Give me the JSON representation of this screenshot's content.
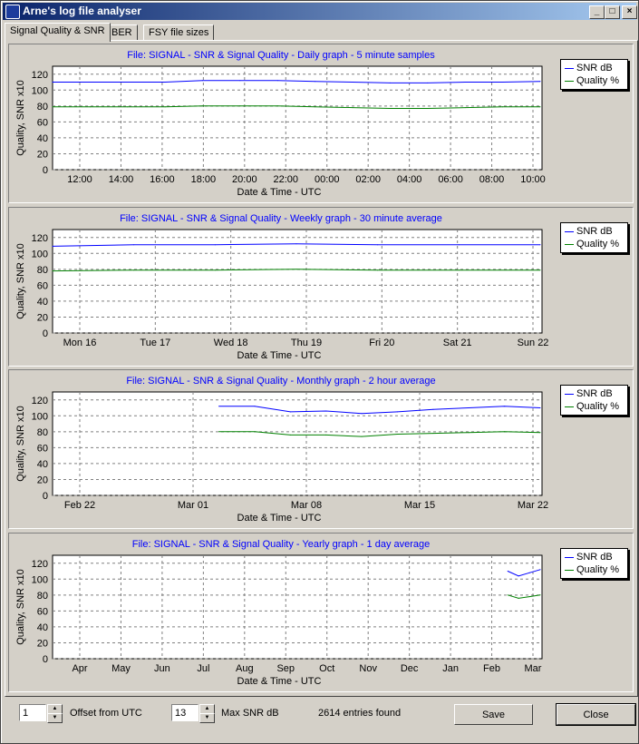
{
  "window": {
    "title": "Arne's log file analyser",
    "minimize": "_",
    "maximize": "□",
    "close": "×"
  },
  "tabs": [
    {
      "label": "Signal Quality & SNR"
    },
    {
      "label": "BER"
    },
    {
      "label": "FSY file sizes"
    }
  ],
  "colors": {
    "snr": "#0000ff",
    "quality": "#008000",
    "title": "#0000ff"
  },
  "charts": [
    {
      "title": "File: SIGNAL - SNR & Signal Quality - Daily graph - 5 minute samples",
      "ylabel": "Quality, SNR x10",
      "xlabel": "Date & Time - UTC",
      "yticks": [
        "0",
        "20",
        "40",
        "60",
        "80",
        "100",
        "120"
      ],
      "xticks": [
        "12:00",
        "14:00",
        "16:00",
        "18:00",
        "20:00",
        "22:00",
        "00:00",
        "02:00",
        "04:00",
        "06:00",
        "08:00",
        "10:00"
      ],
      "legend": [
        "SNR dB",
        "Quality %"
      ]
    },
    {
      "title": "File: SIGNAL - SNR & Signal Quality - Weekly graph - 30 minute average",
      "ylabel": "Quality, SNR x10",
      "xlabel": "Date & Time - UTC",
      "yticks": [
        "0",
        "20",
        "40",
        "60",
        "80",
        "100",
        "120"
      ],
      "xticks": [
        "Mon 16",
        "Tue 17",
        "Wed 18",
        "Thu 19",
        "Fri 20",
        "Sat 21",
        "Sun 22"
      ],
      "legend": [
        "SNR dB",
        "Quality %"
      ]
    },
    {
      "title": "File: SIGNAL - SNR & Signal Quality - Monthly graph - 2 hour average",
      "ylabel": "Quality, SNR x10",
      "xlabel": "Date & Time - UTC",
      "yticks": [
        "0",
        "20",
        "40",
        "60",
        "80",
        "100",
        "120"
      ],
      "xticks": [
        "Feb 22",
        "Mar 01",
        "Mar 08",
        "Mar 15",
        "Mar 22"
      ],
      "legend": [
        "SNR dB",
        "Quality %"
      ]
    },
    {
      "title": "File: SIGNAL - SNR & Signal Quality - Yearly graph - 1 day average",
      "ylabel": "Quality, SNR x10",
      "xlabel": "Date & Time - UTC",
      "yticks": [
        "0",
        "20",
        "40",
        "60",
        "80",
        "100",
        "120"
      ],
      "xticks": [
        "Apr",
        "May",
        "Jun",
        "Jul",
        "Aug",
        "Sep",
        "Oct",
        "Nov",
        "Dec",
        "Jan",
        "Feb",
        "Mar"
      ],
      "legend": [
        "SNR dB",
        "Quality %"
      ]
    }
  ],
  "chart_data": [
    {
      "type": "line",
      "title": "File: SIGNAL - SNR & Signal Quality - Daily graph - 5 minute samples",
      "xlabel": "Date & Time - UTC",
      "ylabel": "Quality, SNR x10",
      "ylim": [
        0,
        130
      ],
      "x": [
        "10:40",
        "12:00",
        "14:00",
        "16:00",
        "18:00",
        "20:00",
        "22:00",
        "00:00",
        "02:00",
        "04:00",
        "06:00",
        "08:00",
        "10:00",
        "10:10"
      ],
      "series": [
        {
          "name": "SNR dB",
          "values": [
            110,
            110,
            110,
            110,
            112,
            112,
            112,
            111,
            110,
            109,
            109,
            110,
            110,
            111
          ]
        },
        {
          "name": "Quality %",
          "values": [
            79,
            79,
            79,
            79,
            80,
            80,
            80,
            79,
            78,
            77,
            77,
            78,
            79,
            79
          ]
        }
      ],
      "grid": true,
      "legend": "right"
    },
    {
      "type": "line",
      "title": "File: SIGNAL - SNR & Signal Quality - Weekly graph - 30 minute average",
      "xlabel": "Date & Time - UTC",
      "ylabel": "Quality, SNR x10",
      "ylim": [
        0,
        130
      ],
      "x": [
        "Mon 16",
        "Tue 17",
        "Wed 18",
        "Thu 19",
        "Fri 20",
        "Sat 21",
        "Sun 22"
      ],
      "series": [
        {
          "name": "SNR dB",
          "values": [
            109,
            111,
            111,
            112,
            111,
            111,
            111
          ]
        },
        {
          "name": "Quality %",
          "values": [
            78,
            79,
            79,
            80,
            79,
            79,
            79
          ]
        }
      ],
      "grid": true,
      "legend": "right"
    },
    {
      "type": "line",
      "title": "File: SIGNAL - SNR & Signal Quality - Monthly graph - 2 hour average",
      "xlabel": "Date & Time - UTC",
      "ylabel": "Quality, SNR x10",
      "ylim": [
        0,
        130
      ],
      "x": [
        "Mar 02",
        "Mar 05",
        "Mar 07",
        "Mar 09",
        "Mar 11",
        "Mar 13",
        "Mar 15",
        "Mar 17",
        "Mar 19",
        "Mar 22"
      ],
      "series": [
        {
          "name": "SNR dB",
          "values": [
            112,
            112,
            105,
            106,
            103,
            105,
            108,
            110,
            112,
            110
          ]
        },
        {
          "name": "Quality %",
          "values": [
            80,
            80,
            76,
            76,
            74,
            77,
            78,
            79,
            80,
            79
          ]
        }
      ],
      "grid": true,
      "legend": "right"
    },
    {
      "type": "line",
      "title": "File: SIGNAL - SNR & Signal Quality - Yearly graph - 1 day average",
      "xlabel": "Date & Time - UTC",
      "ylabel": "Quality, SNR x10",
      "ylim": [
        0,
        130
      ],
      "x": [
        "Mar 01",
        "Mar 08",
        "Mar 15",
        "Mar 22"
      ],
      "series": [
        {
          "name": "SNR dB",
          "values": [
            110,
            104,
            108,
            112
          ]
        },
        {
          "name": "Quality %",
          "values": [
            80,
            76,
            78,
            80
          ]
        }
      ],
      "grid": true,
      "legend": "right"
    }
  ],
  "footer": {
    "offset_value": "1",
    "offset_label": "Offset from UTC",
    "maxsnr_value": "13",
    "maxsnr_label": "Max SNR dB",
    "entries_text": "2614 entries found",
    "save_label": "Save",
    "close_label": "Close"
  }
}
